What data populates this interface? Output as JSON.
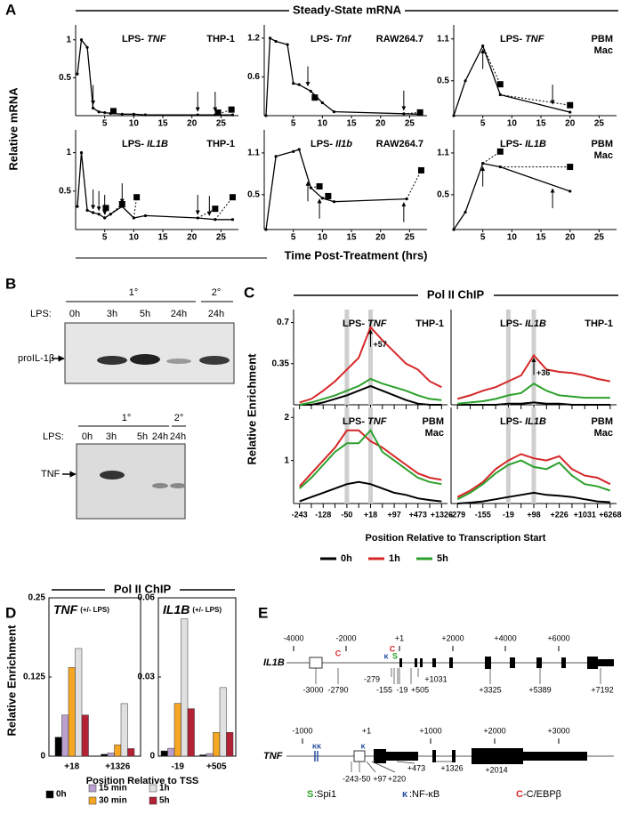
{
  "panel_a": {
    "letter": "A",
    "title": "Steady-State mRNA",
    "y_label": "Relative mRNA",
    "x_label": "Time Post-Treatment (hrs)"
  },
  "panel_b": {
    "letter": "B",
    "top": {
      "row_label": "LPS:",
      "groups": [
        "1°",
        "2°"
      ],
      "lanes": [
        "0h",
        "3h",
        "5h",
        "24h",
        "24h"
      ],
      "band": "proIL-1β"
    },
    "bottom": {
      "row_label": "LPS:",
      "groups": [
        "1°",
        "2°"
      ],
      "lanes": [
        "0h",
        "3h",
        "5h",
        "24h",
        "24h"
      ],
      "band": "TNF"
    }
  },
  "panel_c": {
    "letter": "C",
    "title": "Pol II ChIP",
    "y_label": "Relative Enrichment",
    "x_label": "Position Relative to Transcription Start"
  },
  "panel_d": {
    "letter": "D",
    "title": "Pol II ChIP",
    "y_label": "Relative Enrichment",
    "x_label": "Position Relative to TSS"
  },
  "panel_e": {
    "letter": "E",
    "il1b": {
      "gene": "IL1B",
      "scale": [
        "-4000",
        "-2000",
        "+1",
        "+2000",
        "+4000",
        "+6000"
      ],
      "motifs": [
        "C",
        "C",
        "κ",
        "S"
      ],
      "sites": [
        "-3000",
        "-2790",
        "-279",
        "-155",
        "-19",
        "+505",
        "+1031",
        "+3325",
        "+5389",
        "+7192"
      ]
    },
    "tnf": {
      "gene": "TNF",
      "scale": [
        "-1000",
        "+1",
        "+1000",
        "+2000",
        "+3000"
      ],
      "motifs": [
        "κκ",
        "κ"
      ],
      "sites": [
        "-243",
        "-50",
        "+97",
        "+220",
        "+473",
        "+1326",
        "+2014"
      ]
    },
    "legend": [
      {
        "symbol": "S",
        "label": ":Spi1"
      },
      {
        "symbol": "κ",
        "label": ":NF-κB"
      },
      {
        "symbol": "C",
        "label": "-C/EBPβ"
      }
    ]
  },
  "chart_data": [
    {
      "type": "line",
      "label": "LPS-",
      "gene": "TNF",
      "cell": [
        "THP-1"
      ],
      "x": [
        0.3,
        1,
        2,
        3,
        4,
        5,
        6,
        8,
        10,
        12,
        21,
        24,
        27
      ],
      "series": [
        {
          "color": "#000000",
          "values": [
            0.55,
            1,
            0.9,
            0.1,
            0.05,
            0.04,
            0.03,
            0.02,
            0.02,
            0.01,
            0.01,
            0.01,
            0.01
          ]
        }
      ],
      "squares": {
        "x": [
          6.5,
          24.5,
          26.8
        ],
        "values": [
          0.06,
          0.04,
          0.08
        ]
      },
      "arrows": [
        {
          "x": 3,
          "dir": "down"
        },
        {
          "x": 21,
          "dir": "down"
        },
        {
          "x": 24,
          "dir": "down"
        }
      ],
      "xlim": [
        0,
        28
      ],
      "xticks": [
        5,
        10,
        15,
        20,
        25
      ],
      "ylim": [
        0,
        1.15
      ],
      "yticks": [
        0.5,
        1
      ]
    },
    {
      "type": "line",
      "label": "LPS-",
      "gene": "Tnf",
      "cell": [
        "RAW264.7"
      ],
      "x": [
        0.3,
        1,
        2,
        4,
        5,
        6,
        8,
        10,
        12,
        24,
        27
      ],
      "series": [
        {
          "color": "#000000",
          "values": [
            0,
            1.2,
            1.15,
            1.1,
            0.5,
            0.48,
            0.38,
            0.2,
            0.06,
            0.03,
            0.02
          ]
        }
      ],
      "squares": {
        "x": [
          8.7,
          26.8
        ],
        "values": [
          0.28,
          0.05
        ]
      },
      "arrows": [
        {
          "x": 7.5,
          "dir": "down"
        },
        {
          "x": 24,
          "dir": "down"
        }
      ],
      "xlim": [
        0,
        28
      ],
      "xticks": [
        5,
        10,
        15,
        20,
        25
      ],
      "ylim": [
        0,
        1.35
      ],
      "yticks": [
        0.6,
        1.2
      ]
    },
    {
      "type": "line",
      "label": "LPS-",
      "gene": "TNF",
      "cell": [
        "PBM",
        "Mac"
      ],
      "x": [
        0,
        2,
        5,
        8,
        20
      ],
      "series": [
        {
          "color": "#000000",
          "values": [
            0,
            0.5,
            1.0,
            0.3,
            0.05
          ]
        }
      ],
      "squares": {
        "x": [
          8,
          20
        ],
        "values": [
          0.45,
          0.15
        ]
      },
      "arrows": [
        {
          "x": 5,
          "dir": "up"
        },
        {
          "x": 17,
          "dir": "down"
        }
      ],
      "xlim": [
        0,
        28
      ],
      "xticks": [
        5,
        10,
        15,
        20,
        25
      ],
      "ylim": [
        0,
        1.25
      ],
      "yticks": [
        0.5,
        1.1
      ]
    },
    {
      "type": "line",
      "label": "LPS-",
      "gene": "IL1B",
      "cell": [
        "THP-1"
      ],
      "x": [
        0.3,
        1,
        2,
        3,
        4,
        5,
        6,
        8,
        10,
        12,
        21,
        24,
        27
      ],
      "series": [
        {
          "color": "#000000",
          "values": [
            0.3,
            1,
            0.25,
            0.22,
            0.2,
            0.15,
            0.2,
            0.3,
            0.15,
            0.18,
            0.15,
            0.13,
            0.13
          ]
        }
      ],
      "squares": {
        "x": [
          5.2,
          8,
          10.5,
          24,
          27
        ],
        "values": [
          0.28,
          0.33,
          0.42,
          0.27,
          0.42
        ]
      },
      "arrows": [
        {
          "x": 3,
          "dir": "down"
        },
        {
          "x": 4,
          "dir": "down"
        },
        {
          "x": 5,
          "dir": "down"
        },
        {
          "x": 8,
          "dir": "down"
        },
        {
          "x": 21,
          "dir": "down"
        },
        {
          "x": 23,
          "dir": "down"
        }
      ],
      "xlim": [
        0,
        28
      ],
      "xticks": [
        5,
        10,
        15,
        20,
        25
      ],
      "ylim": [
        0,
        1.25
      ],
      "yticks": [
        0.5,
        1
      ]
    },
    {
      "type": "line",
      "label": "LPS-",
      "gene": "Il1b",
      "cell": [
        "RAW264.7"
      ],
      "x": [
        0.3,
        2,
        5,
        6,
        8,
        10,
        12,
        24.5
      ],
      "series": [
        {
          "color": "#000000",
          "values": [
            0,
            1.05,
            1.12,
            1.15,
            0.6,
            0.45,
            0.4,
            0.44
          ]
        }
      ],
      "squares": {
        "x": [
          9.5,
          11,
          27
        ],
        "values": [
          0.62,
          0.48,
          0.85
        ]
      },
      "arrows": [
        {
          "x": 7.5,
          "dir": "up"
        },
        {
          "x": 9.5,
          "dir": "up"
        },
        {
          "x": 24,
          "dir": "up"
        }
      ],
      "xlim": [
        0,
        28
      ],
      "xticks": [
        5,
        10,
        15,
        20,
        25
      ],
      "ylim": [
        0,
        1.38
      ],
      "yticks": [
        0.5,
        1.1
      ]
    },
    {
      "type": "line",
      "label": "LPS-",
      "gene": "IL1B",
      "cell": [
        "PBM",
        "Mac"
      ],
      "x": [
        0,
        2,
        5,
        8,
        20
      ],
      "series": [
        {
          "color": "#000000",
          "values": [
            0,
            0.25,
            0.95,
            0.9,
            0.55
          ]
        }
      ],
      "squares": {
        "x": [
          8,
          20
        ],
        "values": [
          1.12,
          0.9
        ]
      },
      "arrows": [
        {
          "x": 5,
          "dir": "up"
        },
        {
          "x": 17,
          "dir": "up"
        }
      ],
      "xlim": [
        0,
        28
      ],
      "xticks": [
        5,
        10,
        15,
        20,
        25
      ],
      "ylim": [
        0,
        1.38
      ],
      "yticks": [
        0.5,
        1.1
      ]
    },
    {
      "type": "line",
      "label": "LPS-",
      "gene": "TNF",
      "cell": [
        "THP-1"
      ],
      "annotation": "+57",
      "categories": [
        null,
        null,
        null,
        null,
        null,
        null,
        null,
        null,
        null,
        null,
        null,
        null,
        null
      ],
      "series": [
        {
          "name": "0h",
          "color": "#000000",
          "values": [
            0,
            0,
            0.02,
            0.05,
            0.08,
            0.12,
            0.16,
            0.12,
            0.08,
            0.04,
            0.01,
            0,
            0
          ]
        },
        {
          "name": "1h",
          "color": "#d62728",
          "values": [
            0.02,
            0.05,
            0.12,
            0.2,
            0.3,
            0.4,
            0.66,
            0.55,
            0.45,
            0.35,
            0.3,
            0.2,
            0.15
          ]
        },
        {
          "name": "5h",
          "color": "#2ca02c",
          "values": [
            0,
            0.02,
            0.05,
            0.08,
            0.12,
            0.16,
            0.22,
            0.18,
            0.15,
            0.12,
            0.08,
            0.05,
            0.04
          ]
        }
      ],
      "ylim": [
        0,
        0.78
      ],
      "yticks": [
        0.35,
        0.7
      ]
    },
    {
      "type": "line",
      "label": "LPS-",
      "gene": "IL1B",
      "cell": [
        "THP-1"
      ],
      "annotation": "+36",
      "categories": [
        null,
        null,
        null,
        null,
        null,
        null,
        null,
        null,
        null,
        null,
        null,
        null,
        null
      ],
      "series": [
        {
          "name": "0h",
          "color": "#000000",
          "values": [
            0,
            0,
            0,
            0,
            0.01,
            0.01,
            0.02,
            0.01,
            0.01,
            0,
            0,
            0,
            0
          ]
        },
        {
          "name": "1h",
          "color": "#d62728",
          "values": [
            0.05,
            0.08,
            0.12,
            0.15,
            0.2,
            0.25,
            0.42,
            0.3,
            0.28,
            0.27,
            0.25,
            0.22,
            0.2
          ]
        },
        {
          "name": "5h",
          "color": "#2ca02c",
          "values": [
            0.01,
            0.02,
            0.03,
            0.05,
            0.08,
            0.1,
            0.18,
            0.12,
            0.08,
            0.07,
            0.06,
            0.06,
            0.06
          ]
        }
      ],
      "ylim": [
        0,
        0.78
      ]
    },
    {
      "type": "line",
      "label": "LPS-",
      "gene": "TNF",
      "cell": [
        "PBM",
        "Mac"
      ],
      "categories": [
        "-243",
        null,
        "-128",
        null,
        "-50",
        null,
        "+18",
        null,
        "+97",
        null,
        "+473",
        null,
        "+1326"
      ],
      "series": [
        {
          "name": "0h",
          "color": "#000000",
          "values": [
            0.05,
            0.15,
            0.25,
            0.35,
            0.45,
            0.5,
            0.45,
            0.35,
            0.25,
            0.2,
            0.12,
            0.08,
            0.05
          ]
        },
        {
          "name": "1h",
          "color": "#d62728",
          "values": [
            0.4,
            0.7,
            1,
            1.3,
            1.7,
            1.7,
            1.45,
            1.3,
            1.1,
            0.9,
            0.7,
            0.6,
            0.55
          ]
        },
        {
          "name": "5h",
          "color": "#2ca02c",
          "values": [
            0.35,
            0.6,
            0.9,
            1.2,
            1.4,
            1.4,
            1.7,
            1.2,
            1.0,
            0.8,
            0.6,
            0.5,
            0.45
          ]
        }
      ],
      "ylim": [
        0,
        2.15
      ],
      "yticks": [
        1,
        2
      ]
    },
    {
      "type": "line",
      "label": "LPS-",
      "gene": "IL1B",
      "cell": [
        "PBM",
        "Mac"
      ],
      "categories": [
        "-279",
        null,
        "-155",
        null,
        "-19",
        null,
        "+98",
        null,
        "+226",
        null,
        "+1031",
        null,
        "+6268"
      ],
      "series": [
        {
          "name": "0h",
          "color": "#000000",
          "values": [
            0,
            0.02,
            0.05,
            0.1,
            0.15,
            0.2,
            0.25,
            0.2,
            0.18,
            0.15,
            0.1,
            0.05,
            0.03
          ]
        },
        {
          "name": "1h",
          "color": "#d62728",
          "values": [
            0.15,
            0.3,
            0.5,
            0.8,
            1.0,
            1.15,
            1.05,
            1.0,
            1.1,
            0.8,
            0.65,
            0.6,
            0.45
          ]
        },
        {
          "name": "5h",
          "color": "#2ca02c",
          "values": [
            0.1,
            0.25,
            0.45,
            0.7,
            0.9,
            1.0,
            0.85,
            0.8,
            0.95,
            0.65,
            0.45,
            0.4,
            0.3
          ]
        }
      ],
      "ylim": [
        0,
        2.15
      ]
    },
    {
      "type": "bar",
      "gene": "TNF",
      "note": "(+/- LPS)",
      "categories": [
        "+18",
        "+1326"
      ],
      "series": [
        {
          "name": "0h",
          "color": "#000000",
          "values": [
            0.03,
            0.003
          ]
        },
        {
          "name": "15 min",
          "color": "#b9a0cf",
          "values": [
            0.065,
            0.005
          ]
        },
        {
          "name": "30 min",
          "color": "#f5a623",
          "values": [
            0.14,
            0.018
          ]
        },
        {
          "name": "1h",
          "color": "#e0e0e0",
          "values": [
            0.17,
            0.083
          ]
        },
        {
          "name": "5h",
          "color": "#b22234",
          "values": [
            0.065,
            0.012
          ]
        }
      ],
      "ylim": [
        0,
        0.25
      ],
      "yticks": [
        0,
        0.125,
        0.25
      ]
    },
    {
      "type": "bar",
      "gene": "IL1B",
      "note": "(+/- LPS)",
      "categories": [
        "-19",
        "+505"
      ],
      "series": [
        {
          "name": "0h",
          "color": "#000000",
          "values": [
            0.002,
            0.0005
          ]
        },
        {
          "name": "15 min",
          "color": "#b9a0cf",
          "values": [
            0.003,
            0.001
          ]
        },
        {
          "name": "30 min",
          "color": "#f5a623",
          "values": [
            0.02,
            0.009
          ]
        },
        {
          "name": "1h",
          "color": "#e0e0e0",
          "values": [
            0.052,
            0.026
          ]
        },
        {
          "name": "5h",
          "color": "#b22234",
          "values": [
            0.018,
            0.009
          ]
        }
      ],
      "ylim": [
        0,
        0.06
      ],
      "yticks": [
        0,
        0.03,
        0.06
      ]
    }
  ]
}
